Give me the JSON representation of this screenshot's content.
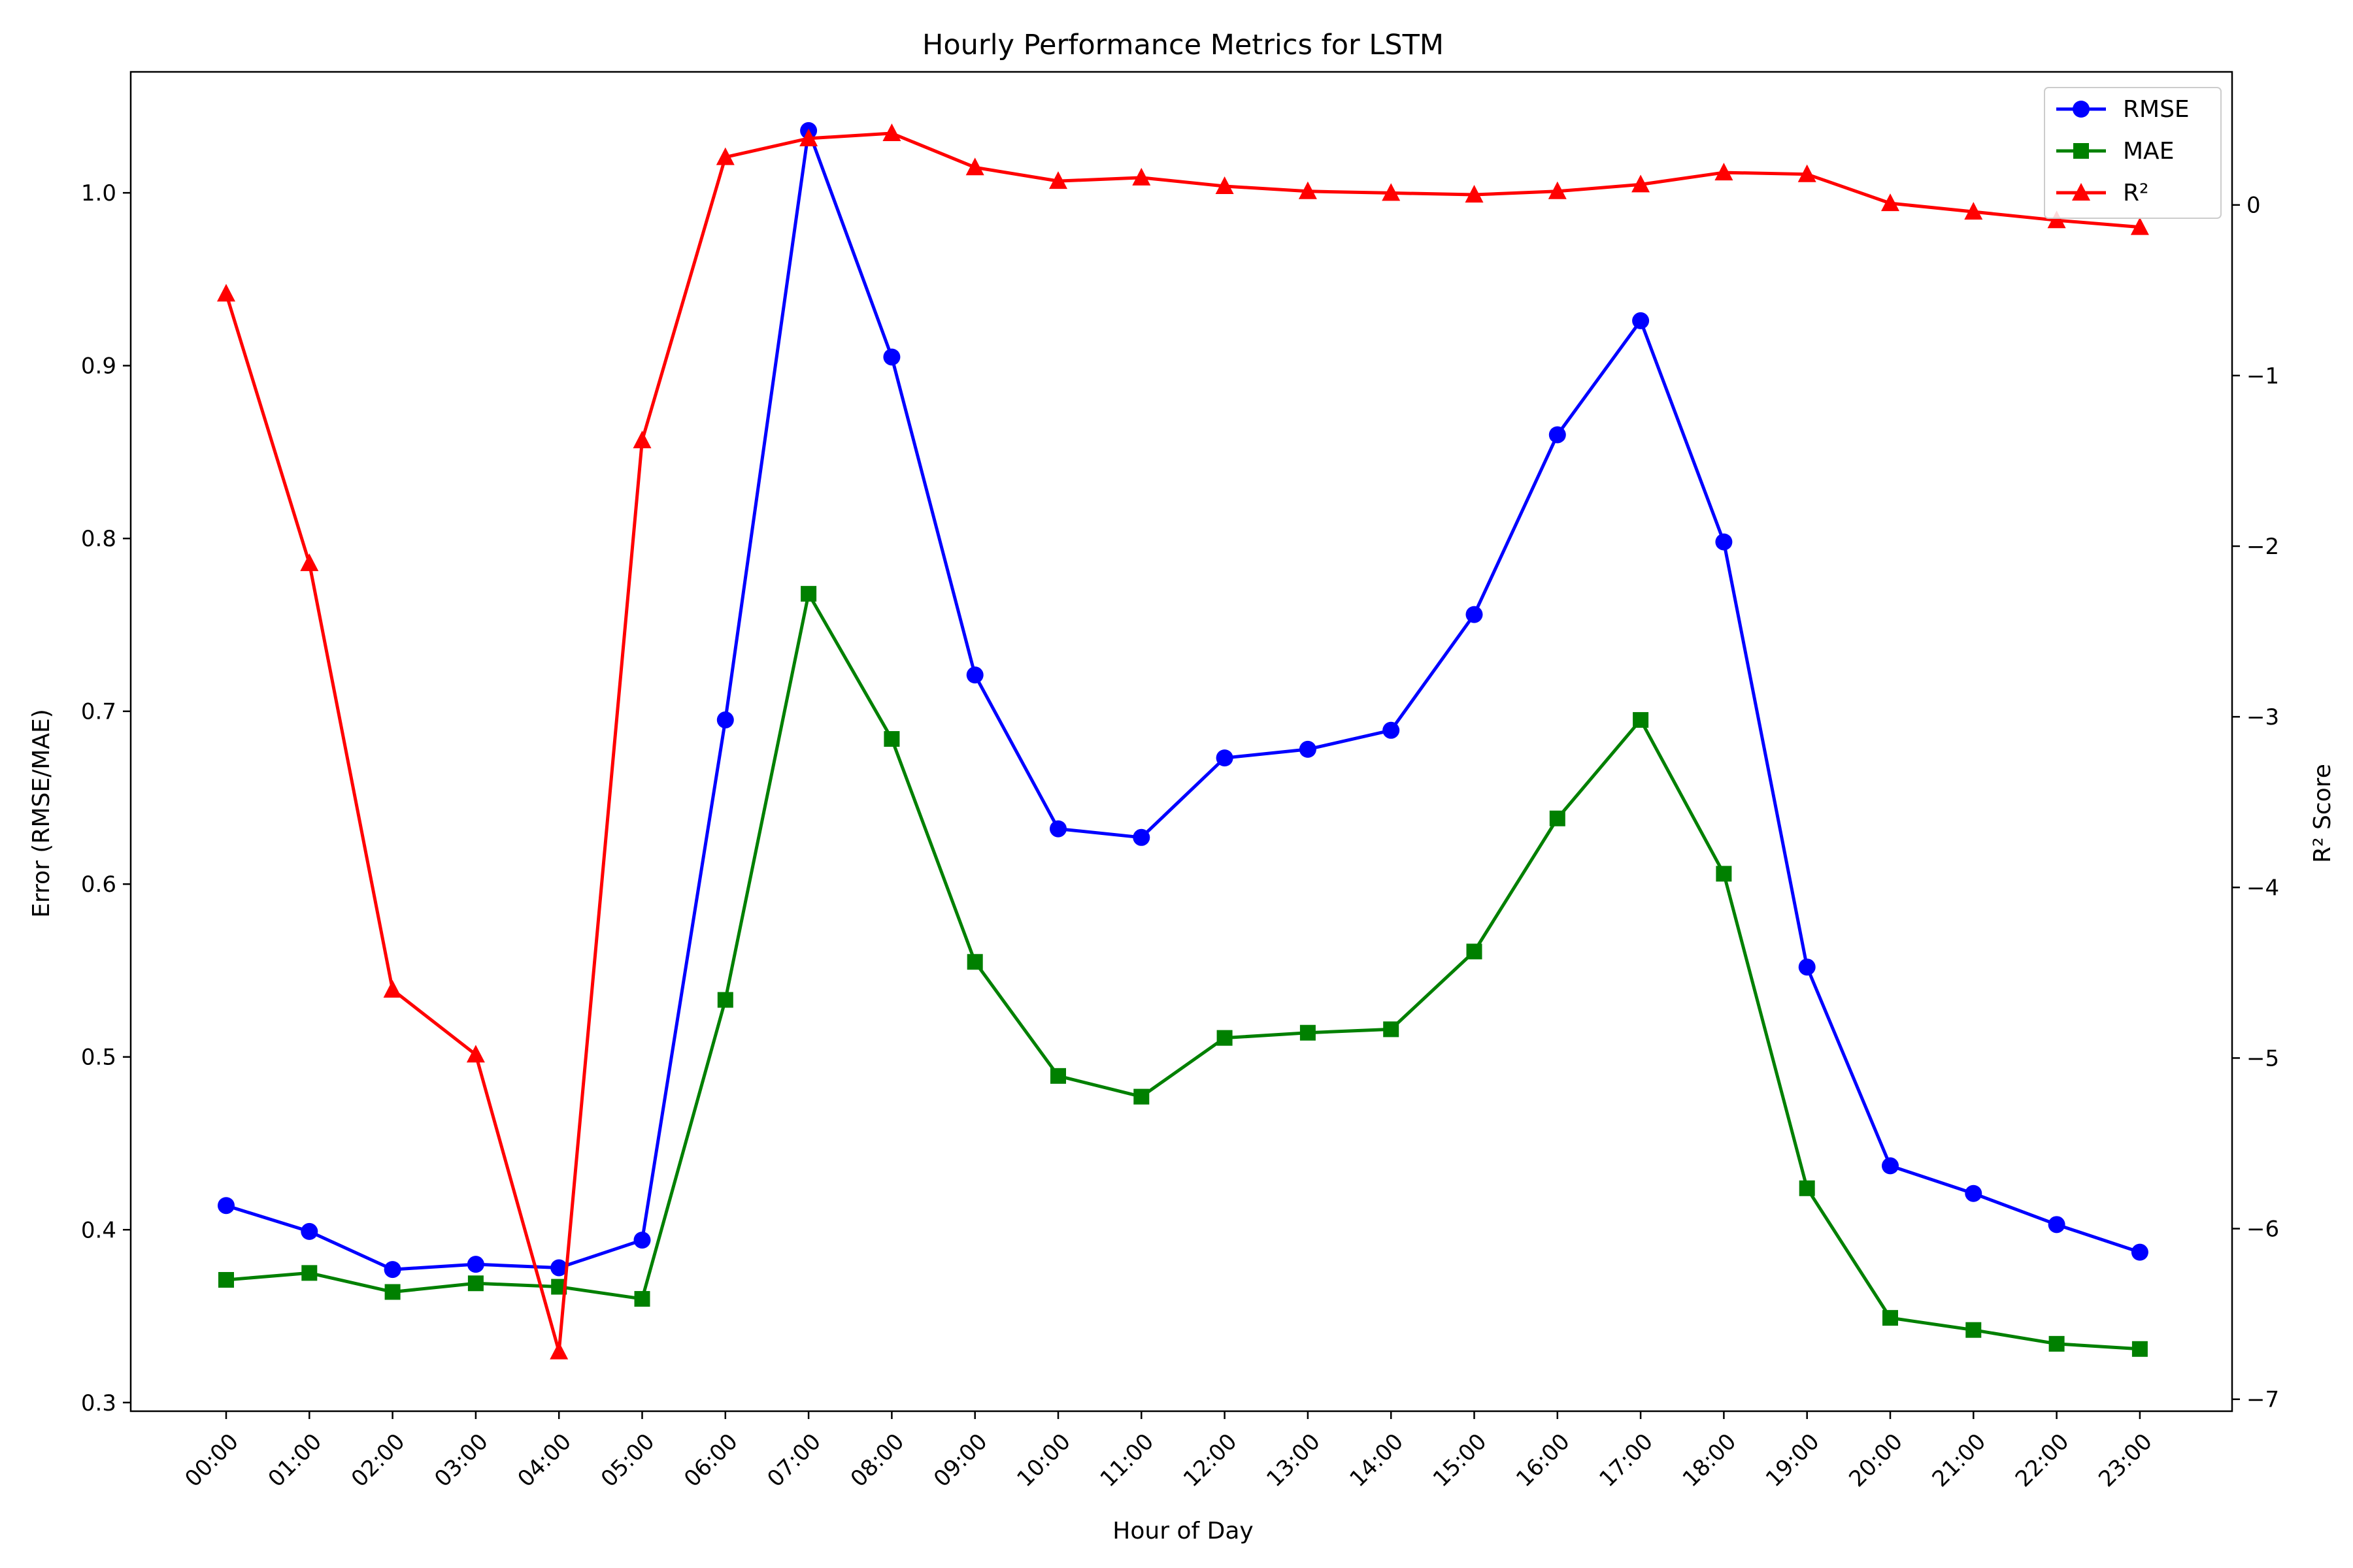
{
  "chart_data": {
    "type": "line",
    "title": "Hourly Performance Metrics for LSTM",
    "xlabel": "Hour of Day",
    "ylabel": "Error (RMSE/MAE)",
    "y2label": "R² Score",
    "categories": [
      "00:00",
      "01:00",
      "02:00",
      "03:00",
      "04:00",
      "05:00",
      "06:00",
      "07:00",
      "08:00",
      "09:00",
      "10:00",
      "11:00",
      "12:00",
      "13:00",
      "14:00",
      "15:00",
      "16:00",
      "17:00",
      "18:00",
      "19:00",
      "20:00",
      "21:00",
      "22:00",
      "23:00"
    ],
    "ylim": [
      0.295,
      1.07
    ],
    "y2lim": [
      -7.07,
      0.78
    ],
    "yticks": [
      0.3,
      0.4,
      0.5,
      0.6,
      0.7,
      0.8,
      0.9,
      1.0
    ],
    "y2ticks": [
      -7,
      -6,
      -5,
      -4,
      -3,
      -2,
      -1,
      0
    ],
    "grid": false,
    "legend_position": "top-right",
    "series": [
      {
        "name": "RMSE",
        "axis": "left",
        "color": "#0000ff",
        "marker": "circle",
        "values": [
          0.414,
          0.399,
          0.377,
          0.38,
          0.378,
          0.394,
          0.695,
          1.036,
          0.905,
          0.721,
          0.632,
          0.627,
          0.673,
          0.678,
          0.689,
          0.756,
          0.86,
          0.926,
          0.798,
          0.552,
          0.437,
          0.421,
          0.403,
          0.387
        ]
      },
      {
        "name": "MAE",
        "axis": "left",
        "color": "#008000",
        "marker": "square",
        "values": [
          0.371,
          0.375,
          0.364,
          0.369,
          0.367,
          0.36,
          0.533,
          0.768,
          0.684,
          0.555,
          0.489,
          0.477,
          0.511,
          0.514,
          0.516,
          0.561,
          0.638,
          0.695,
          0.606,
          0.424,
          0.349,
          0.342,
          0.334,
          0.331
        ]
      },
      {
        "name": "R²",
        "axis": "right",
        "color": "#ff0000",
        "marker": "triangle",
        "values": [
          -0.52,
          -2.1,
          -4.6,
          -4.98,
          -6.72,
          -1.38,
          0.28,
          0.39,
          0.42,
          0.22,
          0.14,
          0.16,
          0.11,
          0.08,
          0.07,
          0.06,
          0.08,
          0.12,
          0.19,
          0.18,
          0.01,
          -0.04,
          -0.09,
          -0.13
        ]
      }
    ]
  }
}
